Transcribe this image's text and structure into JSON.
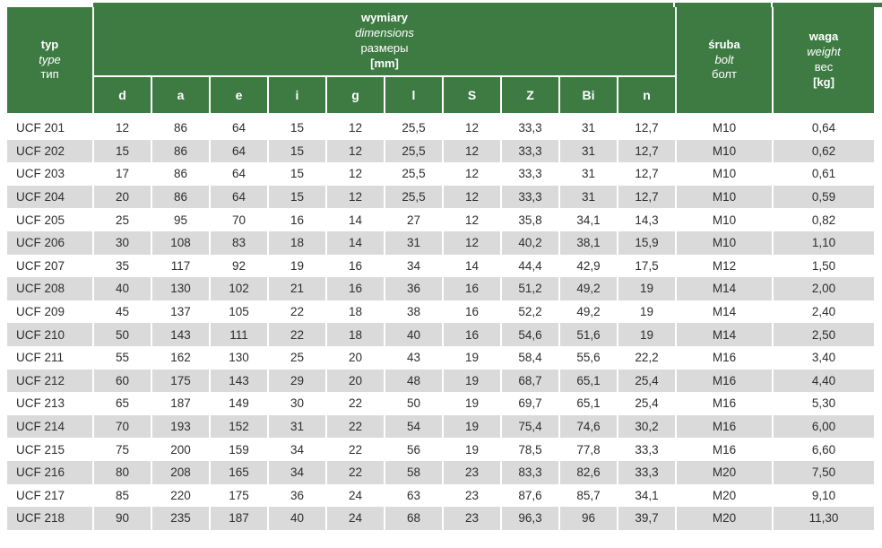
{
  "colors": {
    "header_green": "#3E7B43",
    "row_alt": "#DADADA",
    "text_dark": "#2E2E2E"
  },
  "header": {
    "type_col": {
      "line1": "typ",
      "line2": "type",
      "line3": "тип"
    },
    "dimensions": {
      "line1": "wymiary",
      "line2": "dimensions",
      "line3": "размеры",
      "line4": "[mm]"
    },
    "bolt_col": {
      "line1": "śruba",
      "line2": "bolt",
      "line3": "болт"
    },
    "weight_col": {
      "line1": "waga",
      "line2": "weight",
      "line3": "вес",
      "line4": "[kg]"
    }
  },
  "table": {
    "dim_cols": [
      "d",
      "a",
      "e",
      "i",
      "g",
      "l",
      "S",
      "Z",
      "Bi",
      "n"
    ],
    "fields": [
      "type",
      "d",
      "a",
      "e",
      "i",
      "g",
      "l",
      "S",
      "Z",
      "Bi",
      "n",
      "bolt",
      "weight"
    ],
    "rows": [
      {
        "type": "UCF 201",
        "d": "12",
        "a": "86",
        "e": "64",
        "i": "15",
        "g": "12",
        "l": "25,5",
        "S": "12",
        "Z": "33,3",
        "Bi": "31",
        "n": "12,7",
        "bolt": "M10",
        "weight": "0,64"
      },
      {
        "type": "UCF 202",
        "d": "15",
        "a": "86",
        "e": "64",
        "i": "15",
        "g": "12",
        "l": "25,5",
        "S": "12",
        "Z": "33,3",
        "Bi": "31",
        "n": "12,7",
        "bolt": "M10",
        "weight": "0,62"
      },
      {
        "type": "UCF 203",
        "d": "17",
        "a": "86",
        "e": "64",
        "i": "15",
        "g": "12",
        "l": "25,5",
        "S": "12",
        "Z": "33,3",
        "Bi": "31",
        "n": "12,7",
        "bolt": "M10",
        "weight": "0,61"
      },
      {
        "type": "UCF 204",
        "d": "20",
        "a": "86",
        "e": "64",
        "i": "15",
        "g": "12",
        "l": "25,5",
        "S": "12",
        "Z": "33,3",
        "Bi": "31",
        "n": "12,7",
        "bolt": "M10",
        "weight": "0,59"
      },
      {
        "type": "UCF 205",
        "d": "25",
        "a": "95",
        "e": "70",
        "i": "16",
        "g": "14",
        "l": "27",
        "S": "12",
        "Z": "35,8",
        "Bi": "34,1",
        "n": "14,3",
        "bolt": "M10",
        "weight": "0,82"
      },
      {
        "type": "UCF 206",
        "d": "30",
        "a": "108",
        "e": "83",
        "i": "18",
        "g": "14",
        "l": "31",
        "S": "12",
        "Z": "40,2",
        "Bi": "38,1",
        "n": "15,9",
        "bolt": "M10",
        "weight": "1,10"
      },
      {
        "type": "UCF 207",
        "d": "35",
        "a": "117",
        "e": "92",
        "i": "19",
        "g": "16",
        "l": "34",
        "S": "14",
        "Z": "44,4",
        "Bi": "42,9",
        "n": "17,5",
        "bolt": "M12",
        "weight": "1,50"
      },
      {
        "type": "UCF 208",
        "d": "40",
        "a": "130",
        "e": "102",
        "i": "21",
        "g": "16",
        "l": "36",
        "S": "16",
        "Z": "51,2",
        "Bi": "49,2",
        "n": "19",
        "bolt": "M14",
        "weight": "2,00"
      },
      {
        "type": "UCF 209",
        "d": "45",
        "a": "137",
        "e": "105",
        "i": "22",
        "g": "18",
        "l": "38",
        "S": "16",
        "Z": "52,2",
        "Bi": "49,2",
        "n": "19",
        "bolt": "M14",
        "weight": "2,40"
      },
      {
        "type": "UCF 210",
        "d": "50",
        "a": "143",
        "e": "111",
        "i": "22",
        "g": "18",
        "l": "40",
        "S": "16",
        "Z": "54,6",
        "Bi": "51,6",
        "n": "19",
        "bolt": "M14",
        "weight": "2,50"
      },
      {
        "type": "UCF 211",
        "d": "55",
        "a": "162",
        "e": "130",
        "i": "25",
        "g": "20",
        "l": "43",
        "S": "19",
        "Z": "58,4",
        "Bi": "55,6",
        "n": "22,2",
        "bolt": "M16",
        "weight": "3,40"
      },
      {
        "type": "UCF 212",
        "d": "60",
        "a": "175",
        "e": "143",
        "i": "29",
        "g": "20",
        "l": "48",
        "S": "19",
        "Z": "68,7",
        "Bi": "65,1",
        "n": "25,4",
        "bolt": "M16",
        "weight": "4,40"
      },
      {
        "type": "UCF 213",
        "d": "65",
        "a": "187",
        "e": "149",
        "i": "30",
        "g": "22",
        "l": "50",
        "S": "19",
        "Z": "69,7",
        "Bi": "65,1",
        "n": "25,4",
        "bolt": "M16",
        "weight": "5,30"
      },
      {
        "type": "UCF 214",
        "d": "70",
        "a": "193",
        "e": "152",
        "i": "31",
        "g": "22",
        "l": "54",
        "S": "19",
        "Z": "75,4",
        "Bi": "74,6",
        "n": "30,2",
        "bolt": "M16",
        "weight": "6,00"
      },
      {
        "type": "UCF 215",
        "d": "75",
        "a": "200",
        "e": "159",
        "i": "34",
        "g": "22",
        "l": "56",
        "S": "19",
        "Z": "78,5",
        "Bi": "77,8",
        "n": "33,3",
        "bolt": "M16",
        "weight": "6,60"
      },
      {
        "type": "UCF 216",
        "d": "80",
        "a": "208",
        "e": "165",
        "i": "34",
        "g": "22",
        "l": "58",
        "S": "23",
        "Z": "83,3",
        "Bi": "82,6",
        "n": "33,3",
        "bolt": "M20",
        "weight": "7,50"
      },
      {
        "type": "UCF 217",
        "d": "85",
        "a": "220",
        "e": "175",
        "i": "36",
        "g": "24",
        "l": "63",
        "S": "23",
        "Z": "87,6",
        "Bi": "85,7",
        "n": "34,1",
        "bolt": "M20",
        "weight": "9,10"
      },
      {
        "type": "UCF 218",
        "d": "90",
        "a": "235",
        "e": "187",
        "i": "40",
        "g": "24",
        "l": "68",
        "S": "23",
        "Z": "96,3",
        "Bi": "96",
        "n": "39,7",
        "bolt": "M20",
        "weight": "11,30"
      }
    ]
  }
}
